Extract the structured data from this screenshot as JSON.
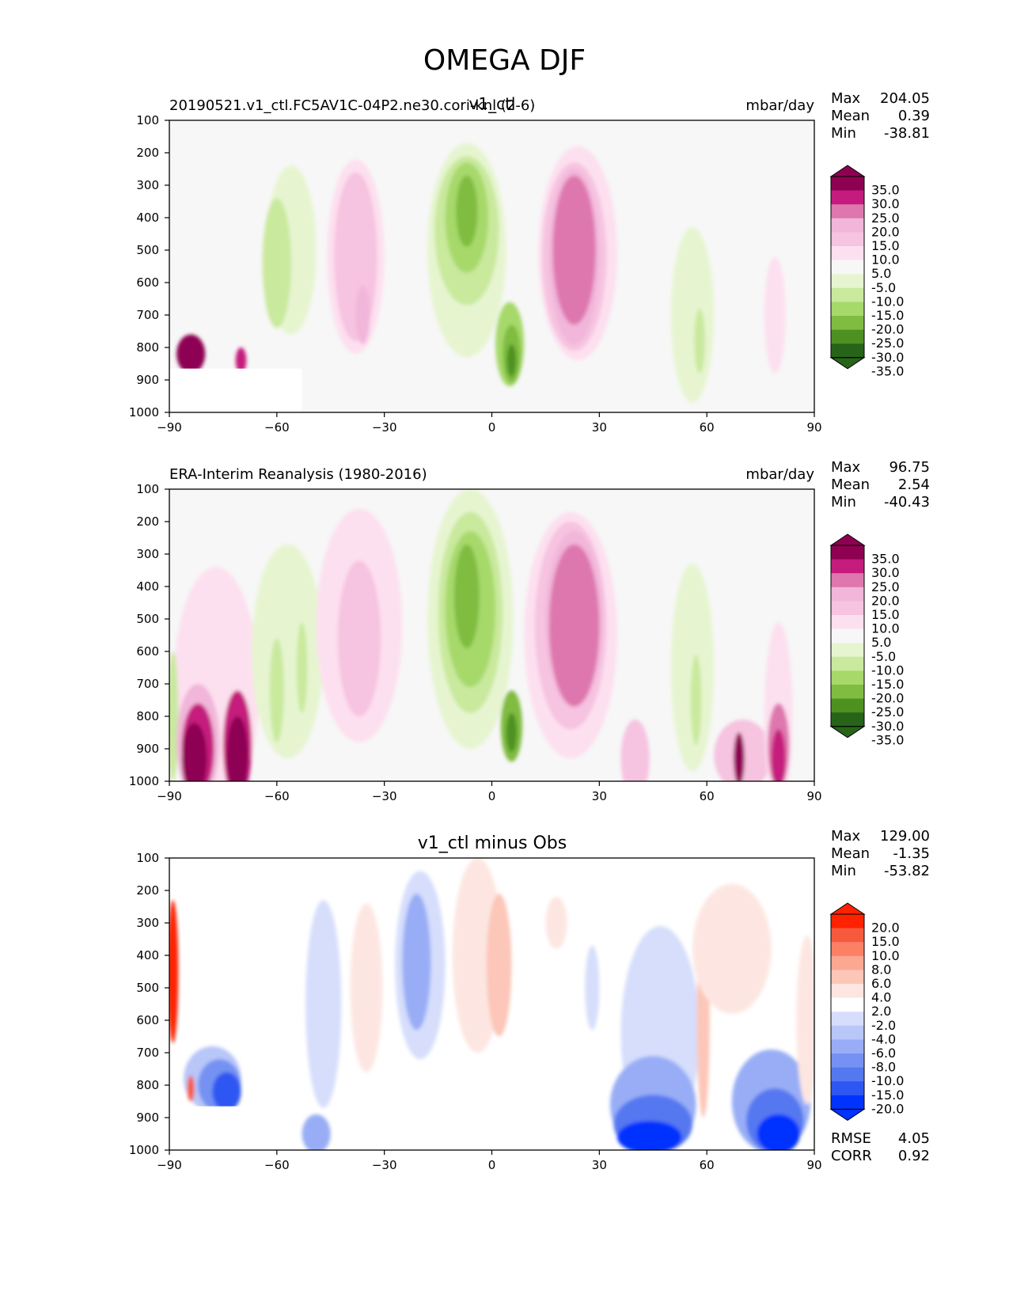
{
  "figure": {
    "title": "OMEGA DJF"
  },
  "colors": {
    "panel_bg": "#f7f7f7",
    "pink_green_scale": [
      "#276419",
      "#4d9221",
      "#7fbc41",
      "#a6d96a",
      "#c9e99d",
      "#e6f5d0",
      "#f7f7f7",
      "#fde0ef",
      "#f6c3e0",
      "#f1b6da",
      "#de77ae",
      "#c51b7d",
      "#8e0152"
    ],
    "diff_scale": [
      "#0033ff",
      "#2e57f2",
      "#5478f0",
      "#7592f2",
      "#98adf5",
      "#b8c6f8",
      "#d6defc",
      "#ffffff",
      "#fde6e1",
      "#fcc6b8",
      "#fca791",
      "#fb8066",
      "#f65a3d",
      "#ff2200"
    ]
  },
  "chart_data": [
    {
      "type": "heatmap",
      "panel": "top",
      "title": "v1_ctl",
      "subtitle_left": "20190521.v1_ctl.FC5AV1C-04P2.ne30.cori-knl (2-6)",
      "units": "mbar/day",
      "x": {
        "ticks": [
          -90,
          -60,
          -30,
          0,
          30,
          60,
          90
        ],
        "tick_labels": [
          "−90",
          "−60",
          "−30",
          "0",
          "30",
          "60",
          "90"
        ],
        "lim": [
          -90,
          90
        ]
      },
      "y": {
        "ticks": [
          100,
          200,
          300,
          400,
          500,
          600,
          700,
          800,
          900,
          1000
        ],
        "tick_labels": [
          "100",
          "200",
          "300",
          "400",
          "500",
          "600",
          "700",
          "800",
          "900",
          "1000"
        ],
        "lim": [
          1000,
          100
        ],
        "inverted": true
      },
      "stats": [
        {
          "label": "Max",
          "value": "204.05"
        },
        {
          "label": "Mean",
          "value": "0.39"
        },
        {
          "label": "Min",
          "value": "-38.81"
        }
      ],
      "colorbar": {
        "labels": [
          "35.0",
          "30.0",
          "25.0",
          "20.0",
          "15.0",
          "10.0",
          "5.0",
          "-5.0",
          "-10.0",
          "-15.0",
          "-20.0",
          "-25.0",
          "-30.0",
          "-35.0"
        ],
        "extend": "both"
      },
      "features": [
        {
          "lat": -84,
          "p": 820,
          "rx": 4,
          "ry": 60,
          "level": 12
        },
        {
          "lat": -70,
          "p": 840,
          "rx": 1.5,
          "ry": 40,
          "level": 11
        },
        {
          "lat": -56,
          "p": 500,
          "rx": 7,
          "ry": 260,
          "level": 5
        },
        {
          "lat": -60,
          "p": 540,
          "rx": 4,
          "ry": 200,
          "level": 4
        },
        {
          "lat": -38,
          "p": 520,
          "rx": 8,
          "ry": 300,
          "level": 7
        },
        {
          "lat": -38,
          "p": 520,
          "rx": 6,
          "ry": 260,
          "level": 8
        },
        {
          "lat": -36,
          "p": 700,
          "rx": 2,
          "ry": 90,
          "level": 9
        },
        {
          "lat": -7,
          "p": 500,
          "rx": 11,
          "ry": 330,
          "level": 5
        },
        {
          "lat": -7,
          "p": 440,
          "rx": 9,
          "ry": 230,
          "level": 4
        },
        {
          "lat": -7,
          "p": 400,
          "rx": 6,
          "ry": 170,
          "level": 3
        },
        {
          "lat": -7,
          "p": 380,
          "rx": 3,
          "ry": 110,
          "level": 2
        },
        {
          "lat": 5,
          "p": 790,
          "rx": 4,
          "ry": 130,
          "level": 3
        },
        {
          "lat": 5.5,
          "p": 820,
          "rx": 2.5,
          "ry": 90,
          "level": 2
        },
        {
          "lat": 5.5,
          "p": 840,
          "rx": 1.3,
          "ry": 50,
          "level": 1
        },
        {
          "lat": 24,
          "p": 510,
          "rx": 11,
          "ry": 330,
          "level": 7
        },
        {
          "lat": 23,
          "p": 520,
          "rx": 9,
          "ry": 290,
          "level": 8
        },
        {
          "lat": 23,
          "p": 520,
          "rx": 7,
          "ry": 270,
          "level": 9
        },
        {
          "lat": 23,
          "p": 500,
          "rx": 6,
          "ry": 230,
          "level": 10
        },
        {
          "lat": 56,
          "p": 700,
          "rx": 6,
          "ry": 270,
          "level": 5
        },
        {
          "lat": 58,
          "p": 780,
          "rx": 1.5,
          "ry": 100,
          "level": 4
        },
        {
          "lat": 79,
          "p": 700,
          "rx": 3,
          "ry": 180,
          "level": 7
        }
      ],
      "masks": [
        {
          "lat0": -90,
          "lat1": -53,
          "p0": 865,
          "p1": 1000
        }
      ]
    },
    {
      "type": "heatmap",
      "panel": "middle",
      "title": "",
      "subtitle_left": "ERA-Interim Reanalysis (1980-2016)",
      "units": "mbar/day",
      "x": {
        "ticks": [
          -90,
          -60,
          -30,
          0,
          30,
          60,
          90
        ],
        "tick_labels": [
          "−90",
          "−60",
          "−30",
          "0",
          "30",
          "60",
          "90"
        ],
        "lim": [
          -90,
          90
        ]
      },
      "y": {
        "ticks": [
          100,
          200,
          300,
          400,
          500,
          600,
          700,
          800,
          900,
          1000
        ],
        "tick_labels": [
          "100",
          "200",
          "300",
          "400",
          "500",
          "600",
          "700",
          "800",
          "900",
          "1000"
        ],
        "lim": [
          1000,
          100
        ],
        "inverted": true
      },
      "stats": [
        {
          "label": "Max",
          "value": "96.75"
        },
        {
          "label": "Mean",
          "value": "2.54"
        },
        {
          "label": "Min",
          "value": "-40.43"
        }
      ],
      "colorbar": {
        "labels": [
          "35.0",
          "30.0",
          "25.0",
          "20.0",
          "15.0",
          "10.0",
          "5.0",
          "-5.0",
          "-10.0",
          "-15.0",
          "-20.0",
          "-25.0",
          "-30.0",
          "-35.0"
        ],
        "extend": "both"
      },
      "features": [
        {
          "lat": -77,
          "p": 720,
          "rx": 12,
          "ry": 380,
          "level": 7
        },
        {
          "lat": -89,
          "p": 800,
          "rx": 1.5,
          "ry": 200,
          "level": 4
        },
        {
          "lat": -82,
          "p": 880,
          "rx": 6,
          "ry": 180,
          "level": 9
        },
        {
          "lat": -82,
          "p": 900,
          "rx": 4.5,
          "ry": 140,
          "level": 11
        },
        {
          "lat": -83,
          "p": 930,
          "rx": 3.5,
          "ry": 110,
          "level": 12
        },
        {
          "lat": -71,
          "p": 890,
          "rx": 4,
          "ry": 170,
          "level": 11
        },
        {
          "lat": -71,
          "p": 920,
          "rx": 3,
          "ry": 120,
          "level": 12
        },
        {
          "lat": -57,
          "p": 600,
          "rx": 10,
          "ry": 330,
          "level": 5
        },
        {
          "lat": -60,
          "p": 720,
          "rx": 2,
          "ry": 160,
          "level": 4
        },
        {
          "lat": -53,
          "p": 650,
          "rx": 1.5,
          "ry": 140,
          "level": 4
        },
        {
          "lat": -37,
          "p": 520,
          "rx": 12,
          "ry": 360,
          "level": 7
        },
        {
          "lat": -37,
          "p": 560,
          "rx": 6,
          "ry": 240,
          "level": 8
        },
        {
          "lat": -6,
          "p": 500,
          "rx": 12,
          "ry": 400,
          "level": 5
        },
        {
          "lat": -6,
          "p": 480,
          "rx": 9,
          "ry": 310,
          "level": 4
        },
        {
          "lat": -6,
          "p": 470,
          "rx": 7,
          "ry": 240,
          "level": 3
        },
        {
          "lat": -7,
          "p": 430,
          "rx": 3.5,
          "ry": 160,
          "level": 2
        },
        {
          "lat": 5.5,
          "p": 830,
          "rx": 3,
          "ry": 110,
          "level": 2
        },
        {
          "lat": 5.5,
          "p": 850,
          "rx": 1.5,
          "ry": 60,
          "level": 1
        },
        {
          "lat": 22,
          "p": 550,
          "rx": 13,
          "ry": 380,
          "level": 7
        },
        {
          "lat": 22,
          "p": 520,
          "rx": 10,
          "ry": 320,
          "level": 8
        },
        {
          "lat": 23,
          "p": 500,
          "rx": 8,
          "ry": 270,
          "level": 9
        },
        {
          "lat": 23,
          "p": 520,
          "rx": 7,
          "ry": 250,
          "level": 10
        },
        {
          "lat": 56,
          "p": 650,
          "rx": 6,
          "ry": 320,
          "level": 5
        },
        {
          "lat": 57,
          "p": 750,
          "rx": 1.5,
          "ry": 140,
          "level": 4
        },
        {
          "lat": 40,
          "p": 930,
          "rx": 4,
          "ry": 120,
          "level": 8
        },
        {
          "lat": 70,
          "p": 920,
          "rx": 8,
          "ry": 110,
          "level": 8
        },
        {
          "lat": 80,
          "p": 800,
          "rx": 4,
          "ry": 290,
          "level": 7
        },
        {
          "lat": 80,
          "p": 890,
          "rx": 3,
          "ry": 130,
          "level": 10
        },
        {
          "lat": 80,
          "p": 930,
          "rx": 2,
          "ry": 90,
          "level": 11
        },
        {
          "lat": 69,
          "p": 930,
          "rx": 1.5,
          "ry": 80,
          "level": 12
        }
      ],
      "masks": []
    },
    {
      "type": "heatmap",
      "panel": "bottom",
      "title": "v1_ctl minus Obs",
      "subtitle_left": "",
      "units": "",
      "x": {
        "ticks": [
          -90,
          -60,
          -30,
          0,
          30,
          60,
          90
        ],
        "tick_labels": [
          "−90",
          "−60",
          "−30",
          "0",
          "30",
          "60",
          "90"
        ],
        "lim": [
          -90,
          90
        ]
      },
      "y": {
        "ticks": [
          100,
          200,
          300,
          400,
          500,
          600,
          700,
          800,
          900,
          1000
        ],
        "tick_labels": [
          "100",
          "200",
          "300",
          "400",
          "500",
          "600",
          "700",
          "800",
          "900",
          "1000"
        ],
        "lim": [
          1000,
          100
        ],
        "inverted": true
      },
      "stats": [
        {
          "label": "Max",
          "value": "129.00"
        },
        {
          "label": "Mean",
          "value": "-1.35"
        },
        {
          "label": "Min",
          "value": "-53.82"
        }
      ],
      "stats_extra": [
        {
          "label": "RMSE",
          "value": "4.05"
        },
        {
          "label": "CORR",
          "value": "0.92"
        }
      ],
      "colorbar": {
        "labels": [
          "20.0",
          "15.0",
          "10.0",
          "8.0",
          "6.0",
          "4.0",
          "2.0",
          "-2.0",
          "-4.0",
          "-6.0",
          "-8.0",
          "-10.0",
          "-15.0",
          "-20.0"
        ],
        "extend": "both"
      },
      "features": [
        {
          "lat": -89,
          "p": 450,
          "rx": 1.5,
          "ry": 220,
          "level": 13
        },
        {
          "lat": -78,
          "p": 780,
          "rx": 8,
          "ry": 100,
          "level": 5
        },
        {
          "lat": -76,
          "p": 800,
          "rx": 6,
          "ry": 80,
          "level": 3
        },
        {
          "lat": -74,
          "p": 820,
          "rx": 4,
          "ry": 60,
          "level": 1
        },
        {
          "lat": -84,
          "p": 810,
          "rx": 1,
          "ry": 40,
          "level": 12
        },
        {
          "lat": -47,
          "p": 550,
          "rx": 5,
          "ry": 320,
          "level": 6
        },
        {
          "lat": -49,
          "p": 950,
          "rx": 4,
          "ry": 60,
          "level": 4
        },
        {
          "lat": -35,
          "p": 500,
          "rx": 4.5,
          "ry": 260,
          "level": 8
        },
        {
          "lat": -20,
          "p": 430,
          "rx": 7,
          "ry": 290,
          "level": 6
        },
        {
          "lat": -21,
          "p": 420,
          "rx": 4,
          "ry": 210,
          "level": 4
        },
        {
          "lat": -4,
          "p": 400,
          "rx": 7,
          "ry": 300,
          "level": 8
        },
        {
          "lat": 2,
          "p": 430,
          "rx": 3.5,
          "ry": 220,
          "level": 9
        },
        {
          "lat": 18,
          "p": 300,
          "rx": 3,
          "ry": 80,
          "level": 8
        },
        {
          "lat": 28,
          "p": 500,
          "rx": 2,
          "ry": 130,
          "level": 6
        },
        {
          "lat": 47,
          "p": 640,
          "rx": 11,
          "ry": 330,
          "level": 6
        },
        {
          "lat": 45,
          "p": 860,
          "rx": 12,
          "ry": 150,
          "level": 4
        },
        {
          "lat": 45,
          "p": 920,
          "rx": 11,
          "ry": 90,
          "level": 2
        },
        {
          "lat": 44,
          "p": 960,
          "rx": 9,
          "ry": 50,
          "level": 0
        },
        {
          "lat": 59,
          "p": 600,
          "rx": 1.8,
          "ry": 300,
          "level": 9
        },
        {
          "lat": 67,
          "p": 380,
          "rx": 11,
          "ry": 200,
          "level": 8
        },
        {
          "lat": 78,
          "p": 850,
          "rx": 11,
          "ry": 160,
          "level": 4
        },
        {
          "lat": 79,
          "p": 910,
          "rx": 8,
          "ry": 100,
          "level": 2
        },
        {
          "lat": 80,
          "p": 950,
          "rx": 6,
          "ry": 60,
          "level": 0
        },
        {
          "lat": 88,
          "p": 600,
          "rx": 3,
          "ry": 260,
          "level": 8
        }
      ],
      "masks": [
        {
          "lat0": -90,
          "lat1": -54,
          "p0": 865,
          "p1": 1000
        }
      ]
    }
  ]
}
